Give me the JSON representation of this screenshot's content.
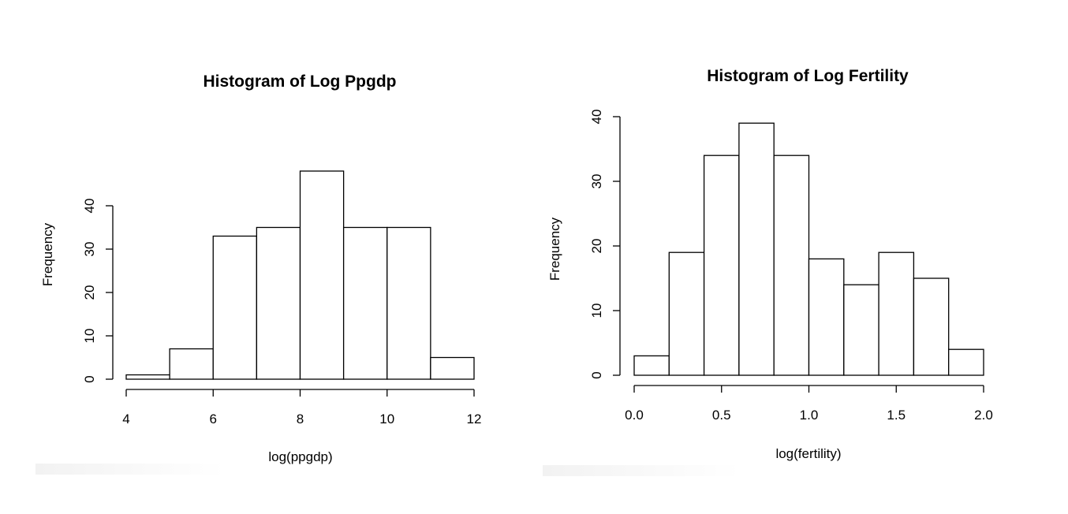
{
  "chart_data": [
    {
      "type": "bar",
      "title": "Histogram of Log Ppgdp",
      "xlabel": "log(ppgdp)",
      "ylabel": "Frequency",
      "bin_edges": [
        4,
        5,
        6,
        7,
        8,
        9,
        10,
        11,
        12
      ],
      "values": [
        1,
        7,
        33,
        35,
        48,
        35,
        35,
        5
      ],
      "xlim": [
        4,
        12
      ],
      "ylim": [
        0,
        48
      ],
      "x_ticks": [
        4,
        6,
        8,
        10,
        12
      ],
      "x_tick_labels": [
        "4",
        "6",
        "8",
        "10",
        "12"
      ],
      "y_ticks": [
        0,
        10,
        20,
        30,
        40
      ],
      "y_tick_labels": [
        "0",
        "10",
        "20",
        "30",
        "40"
      ],
      "grid": false,
      "legend": "none"
    },
    {
      "type": "bar",
      "title": "Histogram of Log Fertility",
      "xlabel": "log(fertility)",
      "ylabel": "Frequency",
      "bin_edges": [
        0.0,
        0.2,
        0.4,
        0.6,
        0.8,
        1.0,
        1.2,
        1.4,
        1.6,
        1.8,
        2.0
      ],
      "values": [
        3,
        19,
        34,
        39,
        34,
        18,
        14,
        19,
        15,
        4
      ],
      "xlim": [
        0,
        2
      ],
      "ylim": [
        0,
        40
      ],
      "x_ticks": [
        0.0,
        0.5,
        1.0,
        1.5,
        2.0
      ],
      "x_tick_labels": [
        "0.0",
        "0.5",
        "1.0",
        "1.5",
        "2.0"
      ],
      "y_ticks": [
        0,
        10,
        20,
        30,
        40
      ],
      "y_tick_labels": [
        "0",
        "10",
        "20",
        "30",
        "40"
      ],
      "grid": false,
      "legend": "none"
    }
  ]
}
